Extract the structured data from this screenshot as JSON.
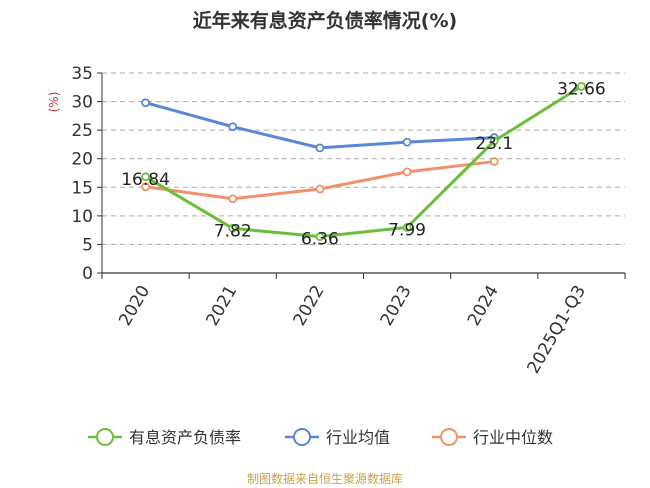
{
  "chart_data": {
    "type": "line",
    "title": "近年来有息资产负债率情况(%)",
    "ylabel": "(%)",
    "categories": [
      "2020",
      "2021",
      "2022",
      "2023",
      "2024",
      "2025Q1-Q3"
    ],
    "ylim": [
      0,
      35
    ],
    "yticks": [
      0,
      5,
      10,
      15,
      20,
      25,
      30,
      35
    ],
    "grid": true,
    "legend": "bottom",
    "series": [
      {
        "name": "有息资产负债率",
        "color": "#6abf3a",
        "values": [
          16.84,
          7.82,
          6.36,
          7.99,
          23.1,
          32.66
        ],
        "labels": [
          "16.84",
          "7.82",
          "6.36",
          "7.99",
          "23.1",
          "32.66"
        ]
      },
      {
        "name": "行业均值",
        "color": "#5b85d6",
        "values": [
          29.8,
          25.6,
          21.9,
          22.9,
          23.7,
          null
        ],
        "labels": []
      },
      {
        "name": "行业中位数",
        "color": "#f0916a",
        "values": [
          15.1,
          13.0,
          14.7,
          17.7,
          19.5,
          null
        ],
        "labels": []
      }
    ]
  },
  "source": "制图数据来自恒生聚源数据库"
}
